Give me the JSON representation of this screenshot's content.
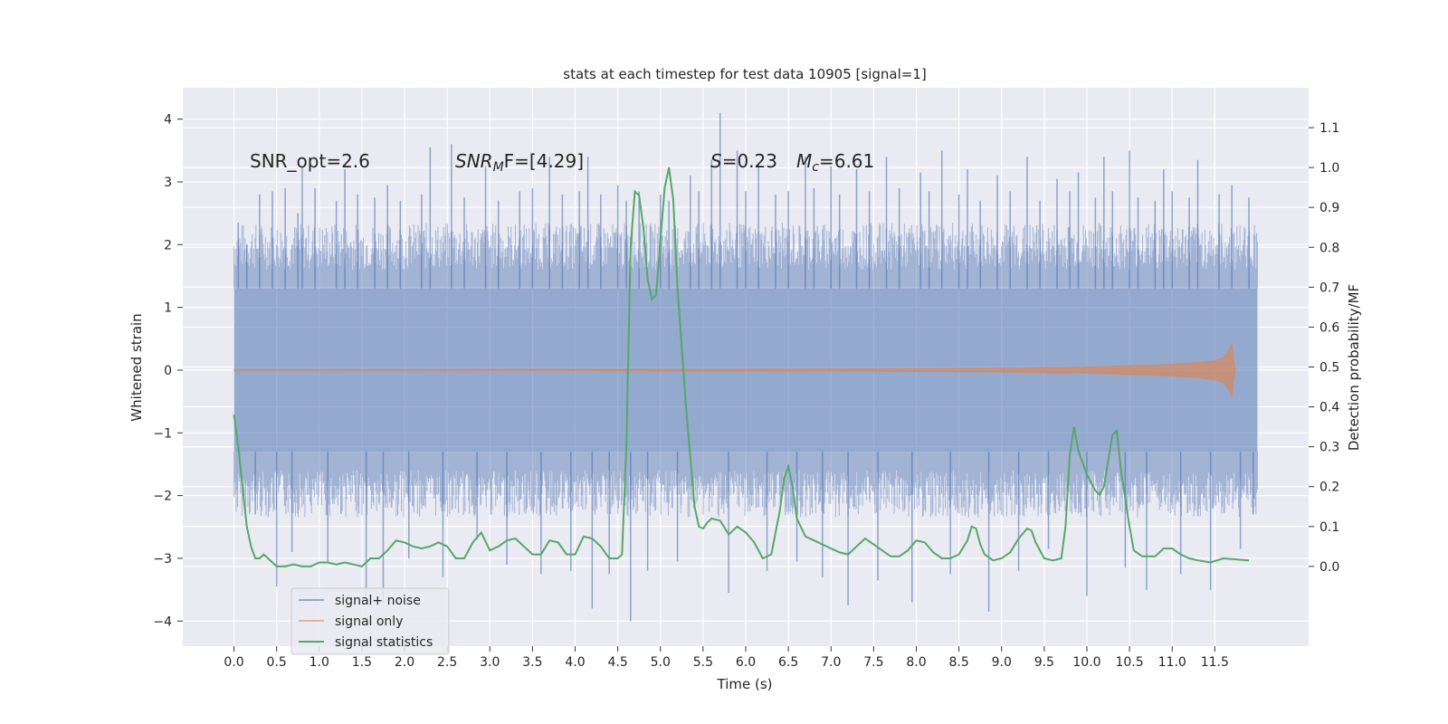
{
  "chart_data": {
    "type": "line",
    "title": "stats at each timestep for test data 10905 [signal=1]",
    "xlabel": "Time (s)",
    "ylabel_left": "Whitened strain",
    "ylabel_right": "Detection probability/MF",
    "xlim": [
      -0.6,
      12.6
    ],
    "ylim_left": [
      -4.4,
      4.5
    ],
    "ylim_right": [
      -0.2,
      1.2
    ],
    "x_ticks": [
      0.0,
      0.5,
      1.0,
      1.5,
      2.0,
      2.5,
      3.0,
      3.5,
      4.0,
      4.5,
      5.0,
      5.5,
      6.0,
      6.5,
      7.0,
      7.5,
      8.0,
      8.5,
      9.0,
      9.5,
      10.0,
      10.5,
      11.0,
      11.5
    ],
    "x_tick_labels": [
      "0.0",
      "0.5",
      "1.0",
      "1.5",
      "2.0",
      "2.5",
      "3.0",
      "3.5",
      "4.0",
      "4.5",
      "5.0",
      "5.5",
      "6.0",
      "6.5",
      "7.0",
      "7.5",
      "8.0",
      "8.5",
      "9.0",
      "9.5",
      "10.0",
      "10.5",
      "11.0",
      "11.5"
    ],
    "y_left_ticks": [
      4,
      3,
      2,
      1,
      0,
      -1,
      -2,
      -3,
      -4
    ],
    "y_left_tick_labels": [
      "4",
      "3",
      "2",
      "1",
      "0",
      "−1",
      "−2",
      "−3",
      "−4"
    ],
    "y_right_ticks": [
      1.1,
      1.0,
      0.9,
      0.8,
      0.7,
      0.6,
      0.5,
      0.4,
      0.3,
      0.2,
      0.1,
      0.0
    ],
    "y_right_tick_labels": [
      "1.1",
      "1.0",
      "0.9",
      "0.8",
      "0.7",
      "0.6",
      "0.5",
      "0.4",
      "0.3",
      "0.2",
      "0.1",
      "0.0"
    ],
    "grid": true,
    "legend_position": "lower-left",
    "annotations": {
      "snr_opt": "SNR_opt=2.6",
      "snr_mf_main": "SNR",
      "snr_mf_sub": "M",
      "snr_mf_rest": "F=[4.29]",
      "s_main": "S",
      "s_rest": "=0.23",
      "mc_main": "M",
      "mc_sub": "c",
      "mc_rest": "=6.61"
    },
    "series": [
      {
        "name": "signal+ noise",
        "axis": "left",
        "color": "#4c72b0",
        "x_range": [
          0.0,
          12.0
        ],
        "band_core": [
          -1.3,
          1.3
        ],
        "spikes": [
          [
            0.05,
            2.35
          ],
          [
            0.15,
            2.0
          ],
          [
            0.25,
            -2.3
          ],
          [
            0.3,
            2.8
          ],
          [
            0.45,
            2.85
          ],
          [
            0.5,
            -3.45
          ],
          [
            0.6,
            2.9
          ],
          [
            0.68,
            -2.9
          ],
          [
            0.75,
            2.5
          ],
          [
            0.8,
            3.25
          ],
          [
            0.95,
            2.9
          ],
          [
            1.1,
            -3.05
          ],
          [
            1.2,
            2.7
          ],
          [
            1.3,
            3.2
          ],
          [
            1.45,
            2.8
          ],
          [
            1.55,
            -3.6
          ],
          [
            1.65,
            2.75
          ],
          [
            1.75,
            -3.7
          ],
          [
            1.8,
            2.95
          ],
          [
            1.95,
            2.7
          ],
          [
            2.05,
            -3.0
          ],
          [
            2.2,
            2.8
          ],
          [
            2.3,
            3.55
          ],
          [
            2.45,
            -3.3
          ],
          [
            2.55,
            3.6
          ],
          [
            2.7,
            2.75
          ],
          [
            2.85,
            -2.7
          ],
          [
            2.95,
            3.25
          ],
          [
            3.1,
            2.7
          ],
          [
            3.2,
            -3.1
          ],
          [
            3.35,
            2.85
          ],
          [
            3.5,
            2.9
          ],
          [
            3.6,
            -3.25
          ],
          [
            3.7,
            3.4
          ],
          [
            3.85,
            2.8
          ],
          [
            3.95,
            -3.2
          ],
          [
            4.05,
            2.85
          ],
          [
            4.15,
            3.4
          ],
          [
            4.2,
            -3.8
          ],
          [
            4.3,
            2.8
          ],
          [
            4.4,
            -3.25
          ],
          [
            4.5,
            2.95
          ],
          [
            4.6,
            2.7
          ],
          [
            4.65,
            -4.0
          ],
          [
            4.75,
            2.85
          ],
          [
            4.85,
            -3.2
          ],
          [
            5.0,
            2.8
          ],
          [
            5.1,
            2.7
          ],
          [
            5.2,
            -3.05
          ],
          [
            5.35,
            3.1
          ],
          [
            5.45,
            2.85
          ],
          [
            5.6,
            3.35
          ],
          [
            5.7,
            4.1
          ],
          [
            5.8,
            -3.55
          ],
          [
            5.9,
            3.5
          ],
          [
            6.0,
            2.85
          ],
          [
            6.15,
            3.3
          ],
          [
            6.25,
            -3.2
          ],
          [
            6.35,
            2.8
          ],
          [
            6.5,
            2.85
          ],
          [
            6.6,
            -3.05
          ],
          [
            6.7,
            3.4
          ],
          [
            6.8,
            2.9
          ],
          [
            6.9,
            -3.3
          ],
          [
            7.0,
            3.25
          ],
          [
            7.1,
            2.8
          ],
          [
            7.2,
            -3.75
          ],
          [
            7.3,
            3.2
          ],
          [
            7.45,
            2.85
          ],
          [
            7.55,
            -3.35
          ],
          [
            7.65,
            3.4
          ],
          [
            7.8,
            2.9
          ],
          [
            7.95,
            -3.7
          ],
          [
            8.05,
            3.15
          ],
          [
            8.15,
            2.85
          ],
          [
            8.3,
            3.5
          ],
          [
            8.4,
            -3.25
          ],
          [
            8.5,
            2.8
          ],
          [
            8.6,
            3.2
          ],
          [
            8.75,
            2.7
          ],
          [
            8.85,
            -3.85
          ],
          [
            8.95,
            3.1
          ],
          [
            9.1,
            2.85
          ],
          [
            9.2,
            -3.2
          ],
          [
            9.3,
            3.4
          ],
          [
            9.45,
            2.7
          ],
          [
            9.55,
            -2.85
          ],
          [
            9.65,
            3.05
          ],
          [
            9.8,
            2.85
          ],
          [
            9.9,
            3.15
          ],
          [
            10.0,
            -3.6
          ],
          [
            10.1,
            2.75
          ],
          [
            10.2,
            3.4
          ],
          [
            10.3,
            2.85
          ],
          [
            10.45,
            -3.15
          ],
          [
            10.5,
            3.5
          ],
          [
            10.6,
            2.75
          ],
          [
            10.7,
            -3.5
          ],
          [
            10.8,
            2.7
          ],
          [
            10.9,
            3.2
          ],
          [
            11.0,
            2.85
          ],
          [
            11.1,
            -3.25
          ],
          [
            11.2,
            2.75
          ],
          [
            11.3,
            3.35
          ],
          [
            11.45,
            -3.5
          ],
          [
            11.55,
            2.8
          ],
          [
            11.7,
            2.95
          ],
          [
            11.8,
            -2.85
          ],
          [
            11.9,
            2.75
          ],
          [
            11.95,
            -2.3
          ]
        ]
      },
      {
        "name": "signal only",
        "axis": "left",
        "color": "#dd8452",
        "envelope": [
          [
            0.0,
            0.005
          ],
          [
            2.0,
            0.006
          ],
          [
            4.0,
            0.008
          ],
          [
            6.0,
            0.012
          ],
          [
            7.0,
            0.015
          ],
          [
            8.0,
            0.02
          ],
          [
            9.0,
            0.03
          ],
          [
            9.5,
            0.04
          ],
          [
            10.0,
            0.05
          ],
          [
            10.5,
            0.07
          ],
          [
            11.0,
            0.09
          ],
          [
            11.3,
            0.12
          ],
          [
            11.5,
            0.15
          ],
          [
            11.6,
            0.2
          ],
          [
            11.65,
            0.28
          ],
          [
            11.7,
            0.42
          ],
          [
            11.72,
            0.15
          ],
          [
            11.74,
            0.0
          ]
        ]
      },
      {
        "name": "signal statistics",
        "axis": "right",
        "color": "#55a868",
        "points": [
          [
            0.0,
            0.38
          ],
          [
            0.05,
            0.3
          ],
          [
            0.1,
            0.2
          ],
          [
            0.15,
            0.1
          ],
          [
            0.2,
            0.05
          ],
          [
            0.25,
            0.02
          ],
          [
            0.3,
            0.02
          ],
          [
            0.35,
            0.03
          ],
          [
            0.4,
            0.02
          ],
          [
            0.45,
            0.01
          ],
          [
            0.5,
            0.0
          ],
          [
            0.6,
            0.0
          ],
          [
            0.7,
            0.005
          ],
          [
            0.8,
            0.0
          ],
          [
            0.9,
            0.0
          ],
          [
            1.0,
            0.01
          ],
          [
            1.1,
            0.01
          ],
          [
            1.2,
            0.005
          ],
          [
            1.3,
            0.01
          ],
          [
            1.4,
            0.005
          ],
          [
            1.5,
            0.0
          ],
          [
            1.6,
            0.02
          ],
          [
            1.7,
            0.02
          ],
          [
            1.8,
            0.04
          ],
          [
            1.9,
            0.065
          ],
          [
            2.0,
            0.06
          ],
          [
            2.1,
            0.05
          ],
          [
            2.2,
            0.045
          ],
          [
            2.3,
            0.05
          ],
          [
            2.4,
            0.06
          ],
          [
            2.5,
            0.05
          ],
          [
            2.6,
            0.02
          ],
          [
            2.7,
            0.02
          ],
          [
            2.8,
            0.06
          ],
          [
            2.9,
            0.085
          ],
          [
            3.0,
            0.04
          ],
          [
            3.1,
            0.05
          ],
          [
            3.2,
            0.065
          ],
          [
            3.3,
            0.07
          ],
          [
            3.4,
            0.05
          ],
          [
            3.5,
            0.03
          ],
          [
            3.6,
            0.03
          ],
          [
            3.7,
            0.065
          ],
          [
            3.8,
            0.06
          ],
          [
            3.9,
            0.03
          ],
          [
            4.0,
            0.03
          ],
          [
            4.1,
            0.075
          ],
          [
            4.2,
            0.07
          ],
          [
            4.3,
            0.05
          ],
          [
            4.4,
            0.02
          ],
          [
            4.5,
            0.02
          ],
          [
            4.55,
            0.03
          ],
          [
            4.6,
            0.3
          ],
          [
            4.65,
            0.8
          ],
          [
            4.7,
            0.94
          ],
          [
            4.75,
            0.93
          ],
          [
            4.8,
            0.85
          ],
          [
            4.85,
            0.72
          ],
          [
            4.9,
            0.67
          ],
          [
            4.95,
            0.68
          ],
          [
            5.0,
            0.82
          ],
          [
            5.05,
            0.95
          ],
          [
            5.1,
            1.0
          ],
          [
            5.15,
            0.92
          ],
          [
            5.2,
            0.7
          ],
          [
            5.3,
            0.4
          ],
          [
            5.4,
            0.15
          ],
          [
            5.45,
            0.1
          ],
          [
            5.5,
            0.095
          ],
          [
            5.55,
            0.11
          ],
          [
            5.6,
            0.12
          ],
          [
            5.7,
            0.115
          ],
          [
            5.8,
            0.08
          ],
          [
            5.9,
            0.1
          ],
          [
            6.0,
            0.085
          ],
          [
            6.1,
            0.06
          ],
          [
            6.2,
            0.02
          ],
          [
            6.3,
            0.03
          ],
          [
            6.4,
            0.14
          ],
          [
            6.45,
            0.22
          ],
          [
            6.5,
            0.25
          ],
          [
            6.55,
            0.2
          ],
          [
            6.6,
            0.12
          ],
          [
            6.7,
            0.075
          ],
          [
            6.8,
            0.065
          ],
          [
            6.9,
            0.055
          ],
          [
            7.0,
            0.045
          ],
          [
            7.1,
            0.035
          ],
          [
            7.2,
            0.03
          ],
          [
            7.3,
            0.05
          ],
          [
            7.4,
            0.07
          ],
          [
            7.5,
            0.055
          ],
          [
            7.6,
            0.04
          ],
          [
            7.7,
            0.025
          ],
          [
            7.8,
            0.025
          ],
          [
            7.9,
            0.04
          ],
          [
            8.0,
            0.065
          ],
          [
            8.1,
            0.06
          ],
          [
            8.2,
            0.035
          ],
          [
            8.3,
            0.02
          ],
          [
            8.4,
            0.02
          ],
          [
            8.5,
            0.03
          ],
          [
            8.6,
            0.065
          ],
          [
            8.65,
            0.1
          ],
          [
            8.7,
            0.095
          ],
          [
            8.75,
            0.055
          ],
          [
            8.8,
            0.03
          ],
          [
            8.9,
            0.015
          ],
          [
            9.0,
            0.02
          ],
          [
            9.1,
            0.035
          ],
          [
            9.2,
            0.07
          ],
          [
            9.3,
            0.095
          ],
          [
            9.35,
            0.09
          ],
          [
            9.4,
            0.06
          ],
          [
            9.5,
            0.02
          ],
          [
            9.6,
            0.015
          ],
          [
            9.7,
            0.02
          ],
          [
            9.75,
            0.1
          ],
          [
            9.8,
            0.28
          ],
          [
            9.85,
            0.35
          ],
          [
            9.9,
            0.29
          ],
          [
            10.0,
            0.23
          ],
          [
            10.1,
            0.19
          ],
          [
            10.15,
            0.18
          ],
          [
            10.2,
            0.2
          ],
          [
            10.3,
            0.33
          ],
          [
            10.35,
            0.34
          ],
          [
            10.4,
            0.24
          ],
          [
            10.5,
            0.1
          ],
          [
            10.55,
            0.04
          ],
          [
            10.65,
            0.025
          ],
          [
            10.8,
            0.025
          ],
          [
            10.9,
            0.045
          ],
          [
            11.0,
            0.045
          ],
          [
            11.1,
            0.03
          ],
          [
            11.2,
            0.02
          ],
          [
            11.3,
            0.015
          ],
          [
            11.45,
            0.01
          ],
          [
            11.6,
            0.02
          ],
          [
            11.9,
            0.015
          ]
        ]
      }
    ]
  }
}
